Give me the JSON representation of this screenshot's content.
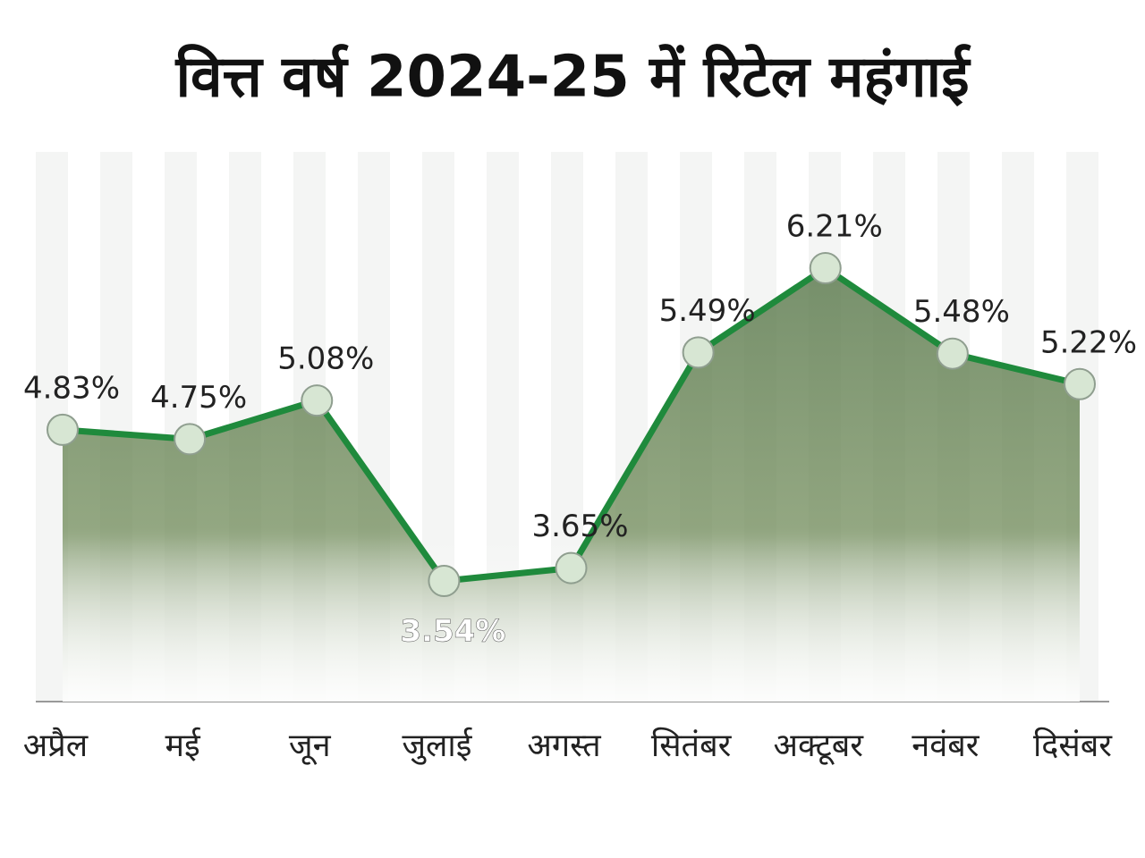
{
  "chart_data": {
    "type": "line",
    "title": "वित्त वर्ष 2024-25 में रिटेल महंगाई",
    "categories": [
      "अप्रैल",
      "मई",
      "जून",
      "जुलाई",
      "अगस्त",
      "सितंबर",
      "अक्टूबर",
      "नवंबर",
      "दिसंबर"
    ],
    "values": [
      4.83,
      4.75,
      5.08,
      3.54,
      3.65,
      5.49,
      6.21,
      5.48,
      5.22
    ],
    "value_labels": [
      "4.83%",
      "4.75%",
      "5.08%",
      "3.54%",
      "3.65%",
      "5.49%",
      "6.21%",
      "5.48%",
      "5.22%"
    ],
    "color": "#1f8a3c"
  }
}
